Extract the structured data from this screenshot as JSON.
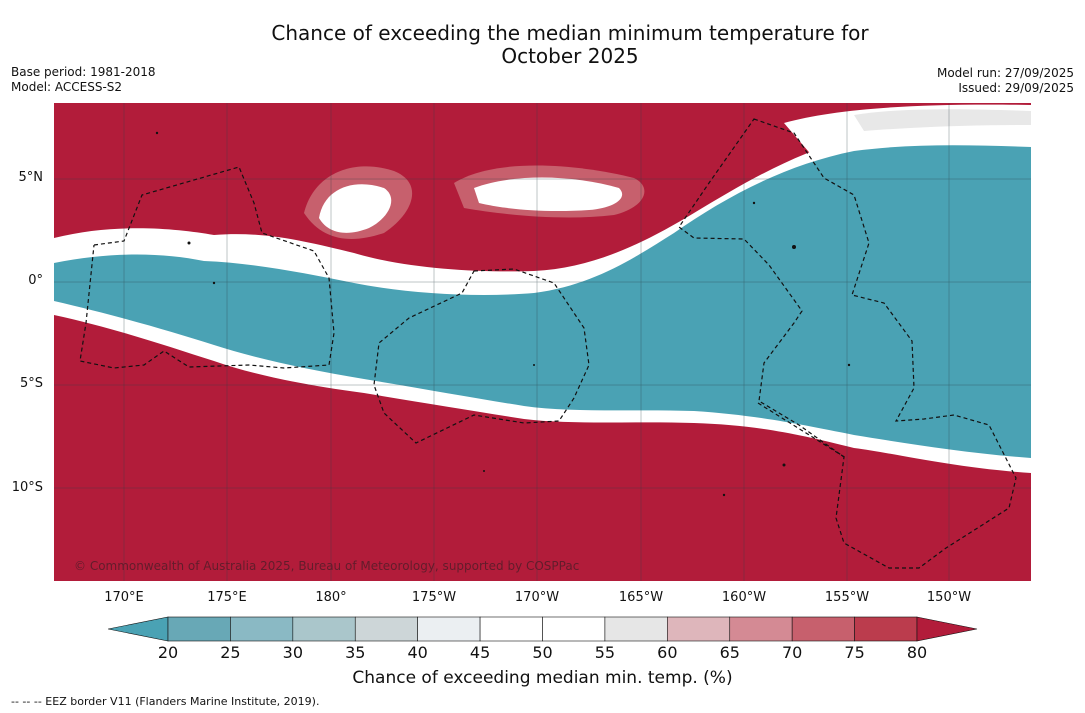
{
  "title": {
    "line1": "Chance of exceeding the median minimum temperature for",
    "line2": "October 2025"
  },
  "meta": {
    "base_period": "Base period: 1981-2018",
    "model": "Model: ACCESS-S2",
    "model_run": "Model run: 27/09/2025",
    "issued": "Issued: 29/09/2025"
  },
  "axes": {
    "latitudes": [
      "5°N",
      "0°",
      "5°S",
      "10°S"
    ],
    "longitudes": [
      "170°E",
      "175°E",
      "180°",
      "175°W",
      "170°W",
      "165°W",
      "160°W",
      "155°W",
      "150°W"
    ]
  },
  "copyright": "© Commonwealth of Australia 2025, Bureau of Meteorology, supported by COSPPac",
  "colorbar": {
    "ticks": [
      "20",
      "25",
      "30",
      "35",
      "40",
      "45",
      "50",
      "55",
      "60",
      "65",
      "70",
      "75",
      "80"
    ],
    "colors": [
      "#68a8b6",
      "#8ab9c4",
      "#aac6cb",
      "#cdd6d8",
      "#ebeff2",
      "#ffffff",
      "#ffffff",
      "#e6e6e6",
      "#deb6bb",
      "#d48a94",
      "#c7606d",
      "#bb3c4d"
    ],
    "low_color": "#4aa2b4",
    "high_color": "#b21c3a",
    "label": "Chance of exceeding median min. temp. (%)"
  },
  "legend_note": "--  --  -- EEZ border V11 (Flanders Marine Institute, 2019)."
}
